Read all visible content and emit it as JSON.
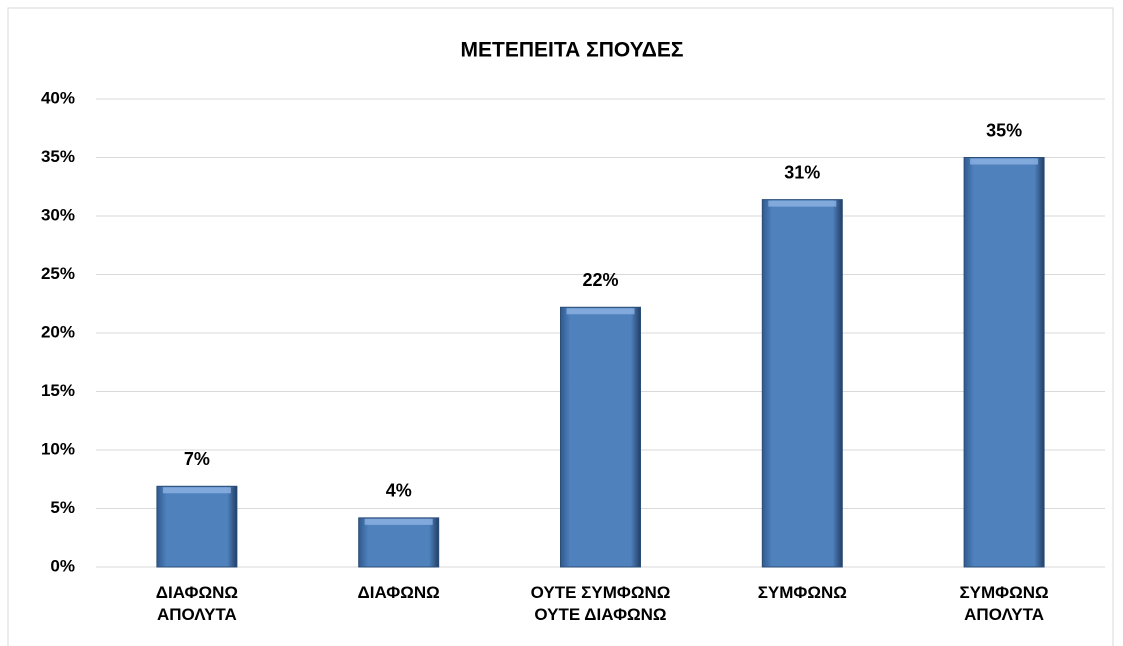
{
  "chart_data": {
    "type": "bar",
    "title": "ΜΕΤΕΠΕΙΤΑ ΣΠΟΥΔΕΣ",
    "categories": [
      "ΔΙΑΦΩΝΩ ΑΠΟΛΥΤΑ",
      "ΔΙΑΦΩΝΩ",
      "ΟΥΤΕ ΣΥΜΦΩΝΩ ΟΥΤΕ ΔΙΑΦΩΝΩ",
      "ΣΥΜΦΩΝΩ",
      "ΣΥΜΦΩΝΩ ΑΠΟΛΥΤΑ"
    ],
    "values": [
      6.9,
      4.2,
      22.2,
      31.4,
      35
    ],
    "value_labels": [
      "7%",
      "4%",
      "22%",
      "31%",
      "35%"
    ],
    "color": "#4f81bd",
    "ylim": [
      0,
      40
    ],
    "yticks": [
      {
        "value": 0,
        "label": "0%"
      },
      {
        "value": 5,
        "label": "5%"
      },
      {
        "value": 10,
        "label": "10%"
      },
      {
        "value": 15,
        "label": "15%"
      },
      {
        "value": 20,
        "label": "20%"
      },
      {
        "value": 25,
        "label": "25%"
      },
      {
        "value": 30,
        "label": "30%"
      },
      {
        "value": 35,
        "label": "35%"
      },
      {
        "value": 40,
        "label": "40%"
      }
    ],
    "grid": true
  }
}
